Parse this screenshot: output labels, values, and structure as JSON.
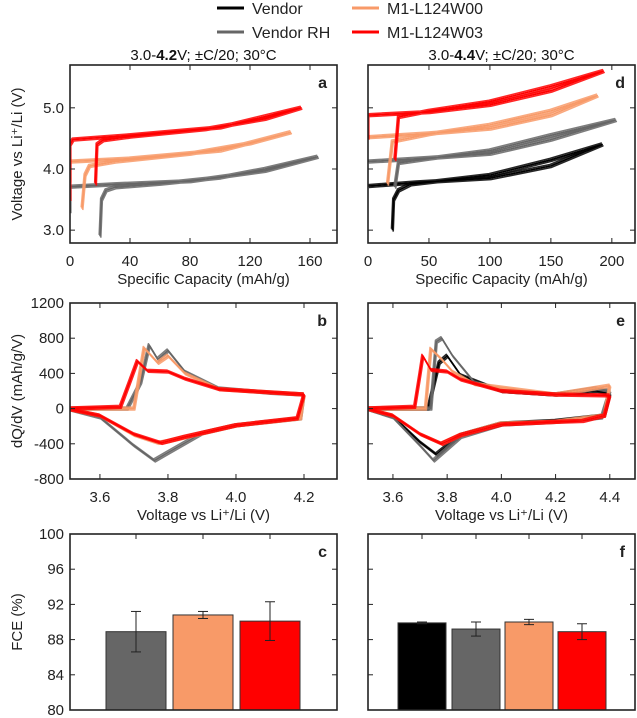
{
  "legend": [
    {
      "name": "Vendor",
      "color": "#000000"
    },
    {
      "name": "Vendor RH",
      "color": "#666666"
    },
    {
      "name": "M1-L124W00",
      "color": "#f89a68"
    },
    {
      "name": "M1-L124W03",
      "color": "#ff0000"
    }
  ],
  "chart_data": [
    {
      "panel": "a",
      "type": "line",
      "title_pre": "3.0-",
      "title_bold": "4.2",
      "title_post": "V; ±C/20; 30°C",
      "xlabel": "Specific Capacity (mAh/g)",
      "ylabel": "Voltage vs Li⁺/Li (V)",
      "xlim": [
        0,
        178
      ],
      "ylim": [
        2.79,
        5.7
      ],
      "xticks": [
        0,
        40,
        80,
        120,
        160
      ],
      "yticks": [
        3.0,
        4.0,
        5.0
      ],
      "ytick_labels": [
        "3.0",
        "4.0",
        "5.0"
      ],
      "series": [
        {
          "name": "Vendor RH",
          "color": "#666666",
          "points": [
            [
              20,
              2.9
            ],
            [
              21,
              3.5
            ],
            [
              24,
              3.65
            ],
            [
              30,
              3.7
            ],
            [
              60,
              3.76
            ],
            [
              100,
              3.86
            ],
            [
              130,
              4.0
            ],
            [
              165,
              4.2
            ],
            [
              130,
              3.97
            ],
            [
              80,
              3.8
            ],
            [
              30,
              3.75
            ],
            [
              0,
              3.71
            ],
            [
              0,
              3.3
            ]
          ]
        },
        {
          "name": "M1-L124W00",
          "color": "#f89a68",
          "points": [
            [
              8,
              3.35
            ],
            [
              10,
              3.9
            ],
            [
              13,
              4.05
            ],
            [
              30,
              4.12
            ],
            [
              80,
              4.25
            ],
            [
              120,
              4.42
            ],
            [
              147,
              4.6
            ],
            [
              100,
              4.3
            ],
            [
              40,
              4.17
            ],
            [
              0,
              4.12
            ],
            [
              0,
              3.8
            ]
          ]
        },
        {
          "name": "M1-L124W03",
          "color": "#ff0000",
          "points": [
            [
              17,
              3.75
            ],
            [
              18,
              4.4
            ],
            [
              22,
              4.47
            ],
            [
              40,
              4.53
            ],
            [
              90,
              4.65
            ],
            [
              130,
              4.82
            ],
            [
              154,
              5.0
            ],
            [
              100,
              4.68
            ],
            [
              40,
              4.55
            ],
            [
              2,
              4.48
            ],
            [
              0,
              4.4
            ],
            [
              0,
              3.5
            ]
          ]
        }
      ]
    },
    {
      "panel": "d",
      "type": "line",
      "title_pre": "3.0-",
      "title_bold": "4.4",
      "title_post": "V; ±C/20; 30°C",
      "xlabel": "Specific Capacity (mAh/g)",
      "ylabel": "",
      "xlim": [
        0,
        219
      ],
      "ylim": [
        2.79,
        5.7
      ],
      "xticks": [
        0,
        50,
        100,
        150,
        200
      ],
      "yticks": [
        3.0,
        4.0,
        5.0
      ],
      "ytick_labels": [],
      "series": [
        {
          "name": "Vendor",
          "color": "#000000",
          "points": [
            [
              20,
              3.0
            ],
            [
              21,
              3.5
            ],
            [
              25,
              3.65
            ],
            [
              35,
              3.75
            ],
            [
              100,
              3.9
            ],
            [
              150,
              4.15
            ],
            [
              192,
              4.4
            ],
            [
              150,
              4.05
            ],
            [
              100,
              3.85
            ],
            [
              40,
              3.78
            ],
            [
              0,
              3.72
            ]
          ]
        },
        {
          "name": "Vendor RH",
          "color": "#666666",
          "points": [
            [
              22,
              3.7
            ],
            [
              25,
              4.1
            ],
            [
              50,
              4.17
            ],
            [
              100,
              4.3
            ],
            [
              150,
              4.55
            ],
            [
              203,
              4.8
            ],
            [
              150,
              4.48
            ],
            [
              100,
              4.25
            ],
            [
              50,
              4.18
            ],
            [
              0,
              4.12
            ]
          ]
        },
        {
          "name": "M1-L124W00",
          "color": "#f89a68",
          "points": [
            [
              16,
              3.75
            ],
            [
              20,
              4.45
            ],
            [
              50,
              4.57
            ],
            [
              100,
              4.72
            ],
            [
              150,
              4.95
            ],
            [
              188,
              5.2
            ],
            [
              150,
              4.88
            ],
            [
              100,
              4.66
            ],
            [
              50,
              4.58
            ],
            [
              0,
              4.52
            ]
          ]
        },
        {
          "name": "M1-L124W03",
          "color": "#ff0000",
          "points": [
            [
              22,
              4.15
            ],
            [
              25,
              4.85
            ],
            [
              50,
              4.95
            ],
            [
              100,
              5.1
            ],
            [
              150,
              5.35
            ],
            [
              193,
              5.6
            ],
            [
              150,
              5.28
            ],
            [
              100,
              5.05
            ],
            [
              50,
              4.93
            ],
            [
              0,
              4.88
            ],
            [
              0,
              4.5
            ]
          ]
        }
      ]
    },
    {
      "panel": "b",
      "type": "line",
      "xlabel": "Voltage vs Li⁺/Li (V)",
      "ylabel": "dQ/dV (mAh/g/V)",
      "xlim": [
        3.512,
        4.297
      ],
      "ylim": [
        -800,
        1200
      ],
      "xticks": [
        3.6,
        3.8,
        4.0,
        4.2
      ],
      "xtick_labels": [
        "3.6",
        "3.8",
        "4.0",
        "4.2"
      ],
      "yticks": [
        -800,
        -400,
        0,
        400,
        800,
        1200
      ],
      "ytick_labels": [
        "-800",
        "-400",
        "0",
        "400",
        "800",
        "1200"
      ],
      "series": [
        {
          "name": "Vendor RH",
          "color": "#666666",
          "points": [
            [
              3.5,
              0
            ],
            [
              3.68,
              0
            ],
            [
              3.72,
              300
            ],
            [
              3.745,
              720
            ],
            [
              3.77,
              560
            ],
            [
              3.8,
              660
            ],
            [
              3.85,
              420
            ],
            [
              3.95,
              230
            ],
            [
              4.1,
              180
            ],
            [
              4.2,
              160
            ],
            [
              4.19,
              -110
            ],
            [
              4.0,
              -190
            ],
            [
              3.9,
              -280
            ],
            [
              3.8,
              -500
            ],
            [
              3.76,
              -590
            ],
            [
              3.7,
              -420
            ],
            [
              3.6,
              -100
            ],
            [
              3.5,
              0
            ]
          ]
        },
        {
          "name": "M1-L124W00",
          "color": "#f89a68",
          "points": [
            [
              3.5,
              0
            ],
            [
              3.7,
              0
            ],
            [
              3.73,
              690
            ],
            [
              3.77,
              520
            ],
            [
              3.8,
              600
            ],
            [
              3.85,
              400
            ],
            [
              3.95,
              220
            ],
            [
              4.2,
              160
            ],
            [
              4.19,
              -110
            ],
            [
              4.0,
              -190
            ],
            [
              3.8,
              -370
            ],
            [
              3.77,
              -390
            ],
            [
              3.7,
              -300
            ],
            [
              3.6,
              -80
            ],
            [
              3.5,
              0
            ]
          ]
        },
        {
          "name": "M1-L124W03",
          "color": "#ff0000",
          "points": [
            [
              3.5,
              0
            ],
            [
              3.66,
              20
            ],
            [
              3.69,
              330
            ],
            [
              3.71,
              540
            ],
            [
              3.74,
              430
            ],
            [
              3.8,
              420
            ],
            [
              3.85,
              340
            ],
            [
              3.95,
              220
            ],
            [
              4.2,
              160
            ],
            [
              4.18,
              -110
            ],
            [
              4.0,
              -190
            ],
            [
              3.85,
              -320
            ],
            [
              3.78,
              -390
            ],
            [
              3.7,
              -290
            ],
            [
              3.6,
              -80
            ],
            [
              3.5,
              0
            ]
          ]
        }
      ]
    },
    {
      "panel": "e",
      "type": "line",
      "xlabel": "Voltage vs Li⁺/Li (V)",
      "ylabel": "",
      "xlim": [
        3.508,
        4.493
      ],
      "ylim": [
        -800,
        1200
      ],
      "xticks": [
        3.6,
        3.8,
        4.0,
        4.2,
        4.4
      ],
      "xtick_labels": [
        "3.6",
        "3.8",
        "4.0",
        "4.2",
        "4.4"
      ],
      "yticks": [
        -800,
        -400,
        0,
        400,
        800,
        1200
      ],
      "ytick_labels": [],
      "series": [
        {
          "name": "Vendor",
          "color": "#000000",
          "points": [
            [
              3.5,
              0
            ],
            [
              3.73,
              0
            ],
            [
              3.77,
              520
            ],
            [
              3.8,
              600
            ],
            [
              3.85,
              380
            ],
            [
              4.0,
              200
            ],
            [
              4.2,
              160
            ],
            [
              4.35,
              200
            ],
            [
              4.4,
              170
            ],
            [
              4.38,
              -80
            ],
            [
              4.2,
              -140
            ],
            [
              4.0,
              -170
            ],
            [
              3.85,
              -300
            ],
            [
              3.76,
              -520
            ],
            [
              3.7,
              -380
            ],
            [
              3.6,
              -90
            ],
            [
              3.5,
              0
            ]
          ]
        },
        {
          "name": "Vendor RH",
          "color": "#666666",
          "points": [
            [
              3.5,
              0
            ],
            [
              3.74,
              0
            ],
            [
              3.76,
              760
            ],
            [
              3.78,
              800
            ],
            [
              3.82,
              600
            ],
            [
              3.9,
              300
            ],
            [
              4.0,
              200
            ],
            [
              4.2,
              160
            ],
            [
              4.35,
              230
            ],
            [
              4.4,
              200
            ],
            [
              4.37,
              -100
            ],
            [
              4.2,
              -150
            ],
            [
              4.0,
              -180
            ],
            [
              3.85,
              -320
            ],
            [
              3.75,
              -590
            ],
            [
              3.7,
              -420
            ],
            [
              3.6,
              -100
            ],
            [
              3.5,
              0
            ]
          ]
        },
        {
          "name": "M1-L124W00",
          "color": "#f89a68",
          "points": [
            [
              3.5,
              0
            ],
            [
              3.72,
              0
            ],
            [
              3.74,
              680
            ],
            [
              3.78,
              560
            ],
            [
              3.82,
              420
            ],
            [
              3.9,
              280
            ],
            [
              4.2,
              160
            ],
            [
              4.4,
              260
            ],
            [
              4.38,
              -80
            ],
            [
              4.2,
              -150
            ],
            [
              4.0,
              -170
            ],
            [
              3.85,
              -300
            ],
            [
              3.78,
              -400
            ],
            [
              3.7,
              -290
            ],
            [
              3.6,
              -80
            ],
            [
              3.5,
              0
            ]
          ]
        },
        {
          "name": "M1-L124W03",
          "color": "#ff0000",
          "points": [
            [
              3.5,
              0
            ],
            [
              3.68,
              20
            ],
            [
              3.7,
              400
            ],
            [
              3.71,
              600
            ],
            [
              3.74,
              440
            ],
            [
              3.8,
              420
            ],
            [
              3.85,
              330
            ],
            [
              4.0,
              200
            ],
            [
              4.2,
              160
            ],
            [
              4.4,
              150
            ],
            [
              4.38,
              -80
            ],
            [
              4.3,
              -140
            ],
            [
              4.2,
              -150
            ],
            [
              4.0,
              -180
            ],
            [
              3.85,
              -300
            ],
            [
              3.78,
              -400
            ],
            [
              3.7,
              -290
            ],
            [
              3.6,
              -80
            ],
            [
              3.5,
              0
            ]
          ]
        }
      ]
    },
    {
      "panel": "c",
      "type": "bar",
      "ylabel": "FCE (%)",
      "ylim": [
        80,
        100
      ],
      "yticks": [
        80,
        84,
        88,
        92,
        96,
        100
      ],
      "ytick_labels": [
        "80",
        "84",
        "88",
        "92",
        "96",
        "100"
      ],
      "categories": [
        "Vendor RH",
        "M1-L124W00",
        "M1-L124W03"
      ],
      "colors": [
        "#666666",
        "#f89a68",
        "#ff0000"
      ],
      "values": [
        88.9,
        90.8,
        90.1
      ],
      "errors": [
        2.3,
        0.4,
        2.2
      ]
    },
    {
      "panel": "f",
      "type": "bar",
      "ylabel": "",
      "ylim": [
        80,
        100
      ],
      "yticks": [
        80,
        84,
        88,
        92,
        96,
        100
      ],
      "ytick_labels": [],
      "categories": [
        "Vendor",
        "Vendor RH",
        "M1-L124W00",
        "M1-L124W03"
      ],
      "colors": [
        "#000000",
        "#666666",
        "#f89a68",
        "#ff0000"
      ],
      "values": [
        89.9,
        89.2,
        90.0,
        88.9
      ],
      "errors": [
        0.1,
        0.8,
        0.3,
        0.9
      ]
    }
  ]
}
